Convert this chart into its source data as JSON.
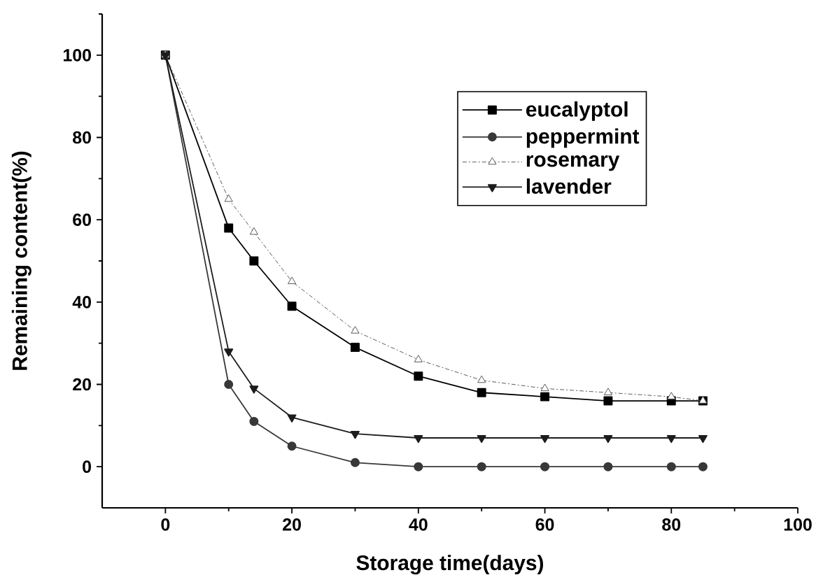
{
  "chart_data": {
    "type": "line",
    "xlabel": "Storage time(days)",
    "ylabel": "Remaining content(%)",
    "xlim": [
      -10,
      100
    ],
    "ylim": [
      -10,
      110
    ],
    "xticks": [
      0,
      {
        "value": 10,
        "label": null
      },
      20,
      {
        "value": 30,
        "label": null
      },
      40,
      {
        "value": 50,
        "label": null
      },
      60,
      {
        "value": 70,
        "label": null
      },
      80,
      {
        "value": 90,
        "label": null
      },
      100
    ],
    "yticks": [
      0,
      {
        "value": 10,
        "label": null
      },
      20,
      {
        "value": 30,
        "label": null
      },
      40,
      {
        "value": 50,
        "label": null
      },
      60,
      {
        "value": 70,
        "label": null
      },
      80,
      {
        "value": 90,
        "label": null
      },
      100,
      {
        "value": 110,
        "label": null
      }
    ],
    "x": [
      0,
      10,
      14,
      20,
      30,
      40,
      50,
      60,
      70,
      80,
      85
    ],
    "series": [
      {
        "name": "eucalyptol",
        "color": "#000000",
        "marker": "square",
        "line_style": "solid",
        "values": [
          100,
          58,
          50,
          39,
          29,
          22,
          18,
          17,
          16,
          16,
          16
        ]
      },
      {
        "name": "peppermint",
        "color": "#383838",
        "marker": "circle",
        "line_style": "solid",
        "values": [
          100,
          20,
          11,
          5,
          1,
          0,
          0,
          0,
          0,
          0,
          0
        ]
      },
      {
        "name": "rosemary",
        "color": "#5a5a5a",
        "marker": "triangle",
        "line_style": "dashed",
        "values": [
          100,
          65,
          57,
          45,
          33,
          26,
          21,
          19,
          18,
          17,
          16
        ]
      },
      {
        "name": "lavender",
        "color": "#1c1c1c",
        "marker": "triangle-down",
        "line_style": "solid",
        "values": [
          100,
          28,
          19,
          12,
          8,
          7,
          7,
          7,
          7,
          7,
          7
        ]
      }
    ],
    "legend": "top right",
    "grid": false
  }
}
